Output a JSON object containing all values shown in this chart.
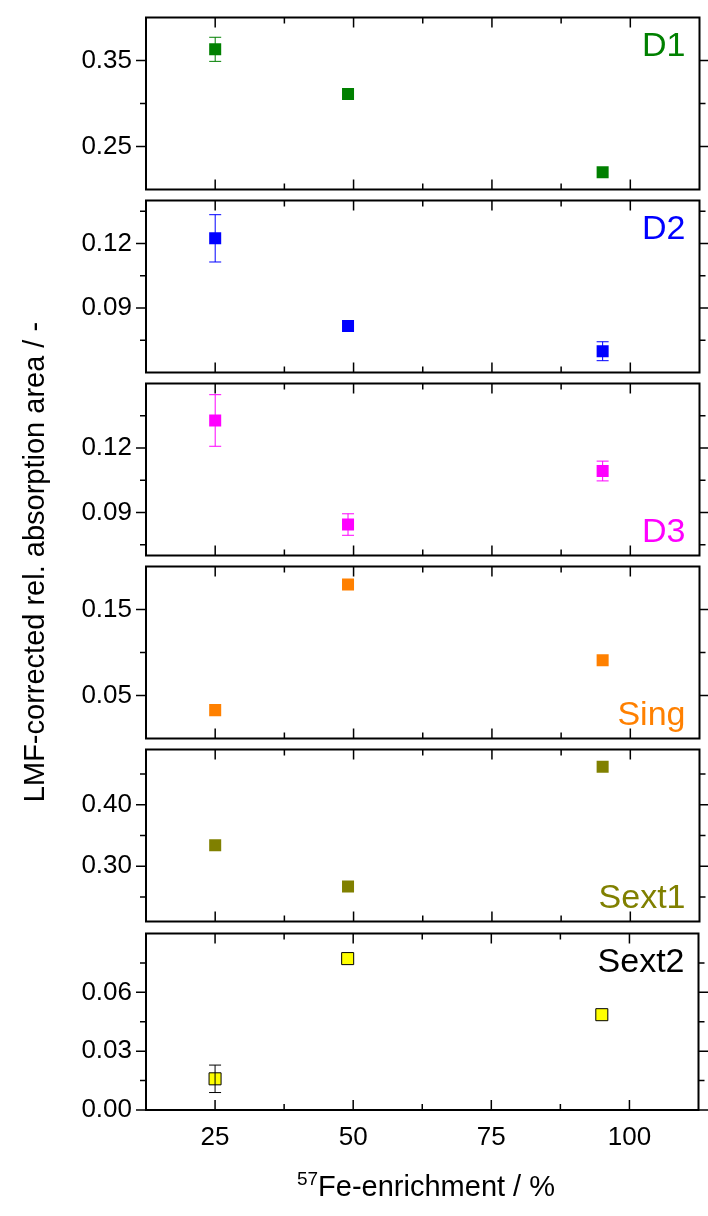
{
  "chart_data": [
    {
      "type": "scatter",
      "x": [
        25,
        49,
        95
      ],
      "xlim": [
        12.5,
        112.5
      ],
      "xticks": [
        25,
        {
          "value": 37.5,
          "label": null
        },
        50,
        {
          "value": 62.5,
          "label": null
        },
        75,
        {
          "value": 87.5,
          "label": null
        },
        100
      ],
      "ylim": [
        0.2,
        0.4
      ],
      "yticks": [
        0.25,
        {
          "value": 0.3,
          "label": null
        },
        0.35
      ],
      "tick_labels": "y",
      "marker": "square",
      "legend": "top right",
      "series": [
        {
          "name": "D1",
          "color": "#008000",
          "values": [
            0.363,
            0.311,
            0.22
          ],
          "errors": [
            0.014,
            null,
            null
          ]
        }
      ]
    },
    {
      "type": "scatter",
      "x": [
        25,
        49,
        95
      ],
      "xlim": [
        12.5,
        112.5
      ],
      "xticks": [
        25,
        {
          "value": 37.5,
          "label": null
        },
        50,
        {
          "value": 62.5,
          "label": null
        },
        75,
        {
          "value": 87.5,
          "label": null
        },
        100
      ],
      "ylim": [
        0.06,
        0.14
      ],
      "yticks": [
        {
          "value": 0.075,
          "label": null
        },
        0.09,
        {
          "value": 0.105,
          "label": null
        },
        0.12,
        {
          "value": 0.135,
          "label": null
        }
      ],
      "tick_labels": "y",
      "marker": "square",
      "legend": "top right",
      "series": [
        {
          "name": "D2",
          "color": "#0000ff",
          "values": [
            0.1224,
            0.0816,
            0.0699
          ],
          "errors": [
            0.011,
            null,
            0.0044
          ]
        }
      ]
    },
    {
      "type": "scatter",
      "x": [
        25,
        49,
        95
      ],
      "xlim": [
        12.5,
        112.5
      ],
      "xticks": [
        25,
        {
          "value": 37.5,
          "label": null
        },
        50,
        {
          "value": 62.5,
          "label": null
        },
        75,
        {
          "value": 87.5,
          "label": null
        },
        100
      ],
      "ylabel": "LMF-corrected rel. absorption area / -",
      "ylim": [
        0.07,
        0.15
      ],
      "yticks": [
        {
          "value": 0.075,
          "label": null
        },
        0.09,
        {
          "value": 0.105,
          "label": null
        },
        0.12,
        {
          "value": 0.135,
          "label": null
        }
      ],
      "tick_labels": "y",
      "marker": "square",
      "legend": "bottom right",
      "series": [
        {
          "name": "D3",
          "color": "#ff00ff",
          "values": [
            0.1328,
            0.0844,
            0.1093
          ],
          "errors": [
            0.012,
            0.005,
            0.0046
          ]
        }
      ]
    },
    {
      "type": "scatter",
      "x": [
        25,
        49,
        95
      ],
      "xlim": [
        12.5,
        112.5
      ],
      "xticks": [
        25,
        {
          "value": 37.5,
          "label": null
        },
        50,
        {
          "value": 62.5,
          "label": null
        },
        75,
        {
          "value": 87.5,
          "label": null
        },
        100
      ],
      "ylim": [
        0,
        0.2
      ],
      "yticks": [
        0.05,
        {
          "value": 0.1,
          "label": null
        },
        0.15
      ],
      "tick_labels": "y",
      "marker": "square",
      "legend": "bottom right",
      "series": [
        {
          "name": "Sing",
          "color": "#ff8000",
          "values": [
            0.033,
            0.179,
            0.091
          ]
        }
      ]
    },
    {
      "type": "scatter",
      "x": [
        25,
        49,
        95
      ],
      "xlim": [
        12.5,
        112.5
      ],
      "xticks": [
        25,
        {
          "value": 37.5,
          "label": null
        },
        50,
        {
          "value": 62.5,
          "label": null
        },
        75,
        {
          "value": 87.5,
          "label": null
        },
        100
      ],
      "ylim": [
        0.21,
        0.49
      ],
      "yticks": [
        {
          "value": 0.25,
          "label": null
        },
        {
          "value": 0.3,
          "label": "0.30"
        },
        {
          "value": 0.35,
          "label": null
        },
        {
          "value": 0.4,
          "label": "0.40"
        },
        {
          "value": 0.45,
          "label": null
        }
      ],
      "tick_labels": "y",
      "marker": "square",
      "legend": "bottom right",
      "series": [
        {
          "name": "Sext1",
          "color": "#808000",
          "values": [
            0.334,
            0.267,
            0.462
          ]
        }
      ]
    },
    {
      "type": "scatter",
      "xlabel": "$^{57}$Fe-enrichment / %",
      "x": [
        25,
        49,
        95
      ],
      "xlim": [
        12.5,
        112.5
      ],
      "xticks": [
        25,
        {
          "value": 37.5,
          "label": null
        },
        50,
        {
          "value": 62.5,
          "label": null
        },
        75,
        {
          "value": 87.5,
          "label": null
        },
        100
      ],
      "ylim": [
        0,
        0.09
      ],
      "yticks": [
        {
          "value": 0,
          "label": "0.00"
        },
        {
          "value": 0.015,
          "label": null
        },
        0.03,
        {
          "value": 0.045,
          "label": null
        },
        0.06,
        {
          "value": 0.075,
          "label": null
        }
      ],
      "marker": "square",
      "legend": "top right",
      "series": [
        {
          "name": "Sext2",
          "color": "#ffff00",
          "values": [
            0.0159,
            0.0772,
            0.0486
          ],
          "errors": [
            0.007,
            null,
            null
          ]
        }
      ]
    }
  ]
}
